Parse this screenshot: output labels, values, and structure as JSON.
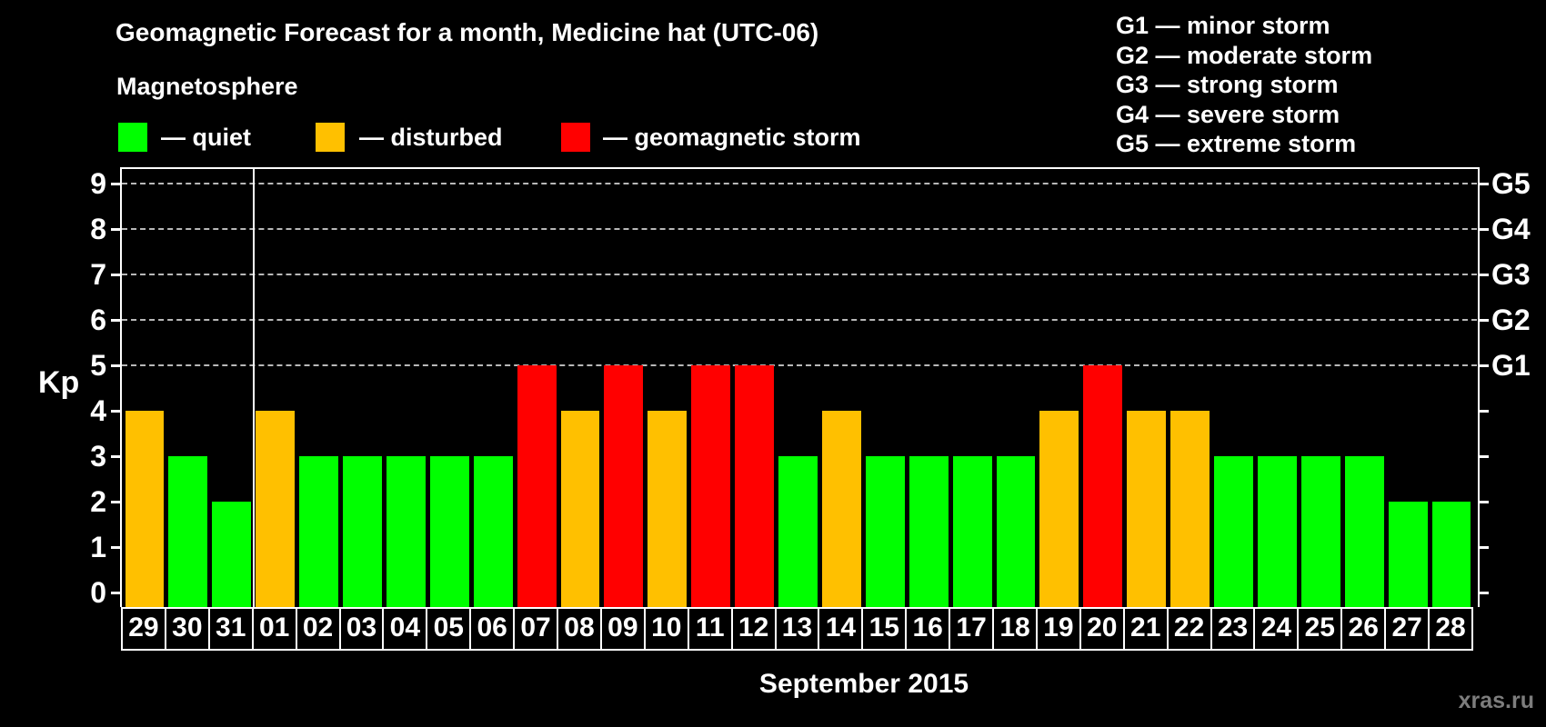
{
  "title": "Geomagnetic Forecast for a month, Medicine hat (UTC-06)",
  "legend": {
    "heading": "Magnetosphere",
    "items": [
      {
        "key": "quiet",
        "label": "— quiet",
        "color": "#00ff00"
      },
      {
        "key": "disturbed",
        "label": "— disturbed",
        "color": "#ffc000"
      },
      {
        "key": "storm",
        "label": "— geomagnetic storm",
        "color": "#ff0000"
      }
    ]
  },
  "g_scale_legend": [
    "G1 — minor storm",
    "G2 — moderate storm",
    "G3 — strong storm",
    "G4 — severe storm",
    "G5 — extreme storm"
  ],
  "watermark": "xras.ru",
  "chart_data": {
    "type": "bar",
    "title": "Geomagnetic Forecast for a month, Medicine hat (UTC-06)",
    "xlabel": "September 2015",
    "ylabel": "Kp",
    "ylim": [
      0,
      9
    ],
    "yticks": [
      0,
      1,
      2,
      3,
      4,
      5,
      6,
      7,
      8,
      9
    ],
    "grid": "horizontal dashed gridlines at Kp 5,6,7,8,9",
    "legend_position": "top-left",
    "right_axis": [
      {
        "kp": 5,
        "label": "G1"
      },
      {
        "kp": 6,
        "label": "G2"
      },
      {
        "kp": 7,
        "label": "G3"
      },
      {
        "kp": 8,
        "label": "G4"
      },
      {
        "kp": 9,
        "label": "G5"
      }
    ],
    "month_boundary_after_index": 3,
    "categories": [
      "29",
      "30",
      "31",
      "01",
      "02",
      "03",
      "04",
      "05",
      "06",
      "07",
      "08",
      "09",
      "10",
      "11",
      "12",
      "13",
      "14",
      "15",
      "16",
      "17",
      "18",
      "19",
      "20",
      "21",
      "22",
      "23",
      "24",
      "25",
      "26",
      "27",
      "28"
    ],
    "values": [
      4,
      3,
      2,
      4,
      3,
      3,
      3,
      3,
      3,
      5,
      4,
      5,
      4,
      5,
      5,
      3,
      4,
      3,
      3,
      3,
      3,
      4,
      5,
      4,
      4,
      3,
      3,
      3,
      3,
      2,
      2
    ],
    "levels": [
      "disturbed",
      "quiet",
      "quiet",
      "disturbed",
      "quiet",
      "quiet",
      "quiet",
      "quiet",
      "quiet",
      "storm",
      "disturbed",
      "storm",
      "disturbed",
      "storm",
      "storm",
      "quiet",
      "disturbed",
      "quiet",
      "quiet",
      "quiet",
      "quiet",
      "disturbed",
      "storm",
      "disturbed",
      "disturbed",
      "quiet",
      "quiet",
      "quiet",
      "quiet",
      "quiet",
      "quiet"
    ]
  }
}
